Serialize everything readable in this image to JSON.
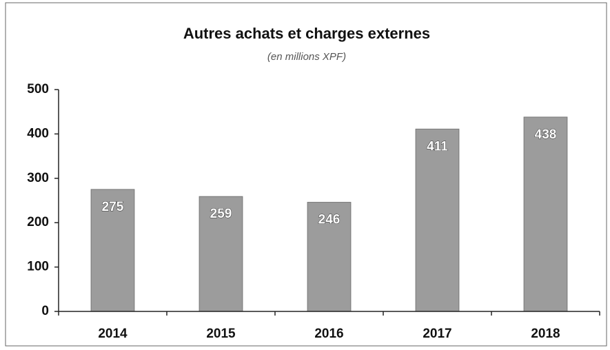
{
  "chart_data": {
    "type": "bar",
    "title": "Autres achats et charges externes",
    "subtitle": "(en millions XPF)",
    "categories": [
      "2014",
      "2015",
      "2016",
      "2017",
      "2018"
    ],
    "values": [
      275,
      259,
      246,
      411,
      438
    ],
    "color": "#9c9c9c",
    "ylim": [
      0,
      500
    ],
    "yticks": [
      0,
      100,
      200,
      300,
      400,
      500
    ],
    "grid": false
  }
}
